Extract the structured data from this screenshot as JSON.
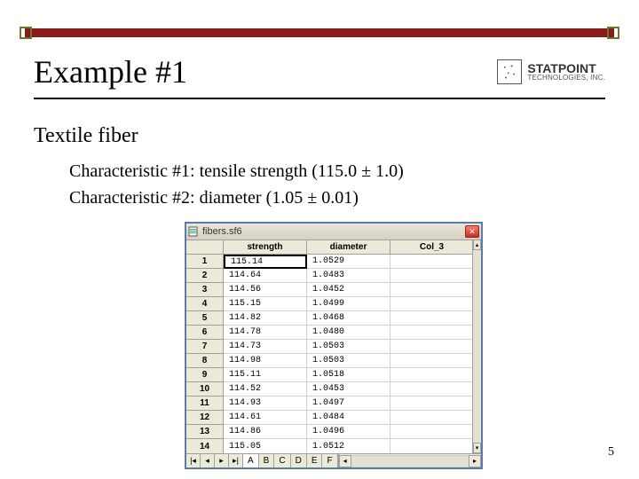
{
  "slide": {
    "title": "Example #1",
    "subtitle": "Textile fiber",
    "char1": "Characteristic #1: tensile strength  (115.0 ± 1.0)",
    "char2": "Characteristic #2: diameter  (1.05 ± 0.01)",
    "page_number": "5",
    "accent_bar_color": "#8a1a1a",
    "square_border_color": "#6a7a2a",
    "rule_color": "#000000"
  },
  "logo": {
    "line1": "STATPOINT",
    "line2": "TECHNOLOGIES, INC."
  },
  "spreadsheet": {
    "window_title": "fibers.sf6",
    "window_border_color": "#5a7ca8",
    "chrome_bg": "#ece9d8",
    "columns": [
      "",
      "strength",
      "diameter",
      "Col_3"
    ],
    "selected_cell": {
      "row": 0,
      "col": 0
    },
    "rows": [
      {
        "n": "1",
        "strength": "115.14",
        "diameter": "1.0529"
      },
      {
        "n": "2",
        "strength": "114.64",
        "diameter": "1.0483"
      },
      {
        "n": "3",
        "strength": "114.56",
        "diameter": "1.0452"
      },
      {
        "n": "4",
        "strength": "115.15",
        "diameter": "1.0499"
      },
      {
        "n": "5",
        "strength": "114.82",
        "diameter": "1.0468"
      },
      {
        "n": "6",
        "strength": "114.78",
        "diameter": "1.0480"
      },
      {
        "n": "7",
        "strength": "114.73",
        "diameter": "1.0503"
      },
      {
        "n": "8",
        "strength": "114.98",
        "diameter": "1.0503"
      },
      {
        "n": "9",
        "strength": "115.11",
        "diameter": "1.0518"
      },
      {
        "n": "10",
        "strength": "114.52",
        "diameter": "1.0453"
      },
      {
        "n": "11",
        "strength": "114.93",
        "diameter": "1.0497"
      },
      {
        "n": "12",
        "strength": "114.61",
        "diameter": "1.0484"
      },
      {
        "n": "13",
        "strength": "114.86",
        "diameter": "1.0496"
      },
      {
        "n": "14",
        "strength": "115.05",
        "diameter": "1.0512"
      }
    ],
    "sheet_tabs": [
      "A",
      "B",
      "C",
      "D",
      "E",
      "F"
    ],
    "active_tab": "A",
    "nav": {
      "first": "|◂",
      "prev": "◂",
      "next": "▸",
      "last": "▸|"
    }
  }
}
